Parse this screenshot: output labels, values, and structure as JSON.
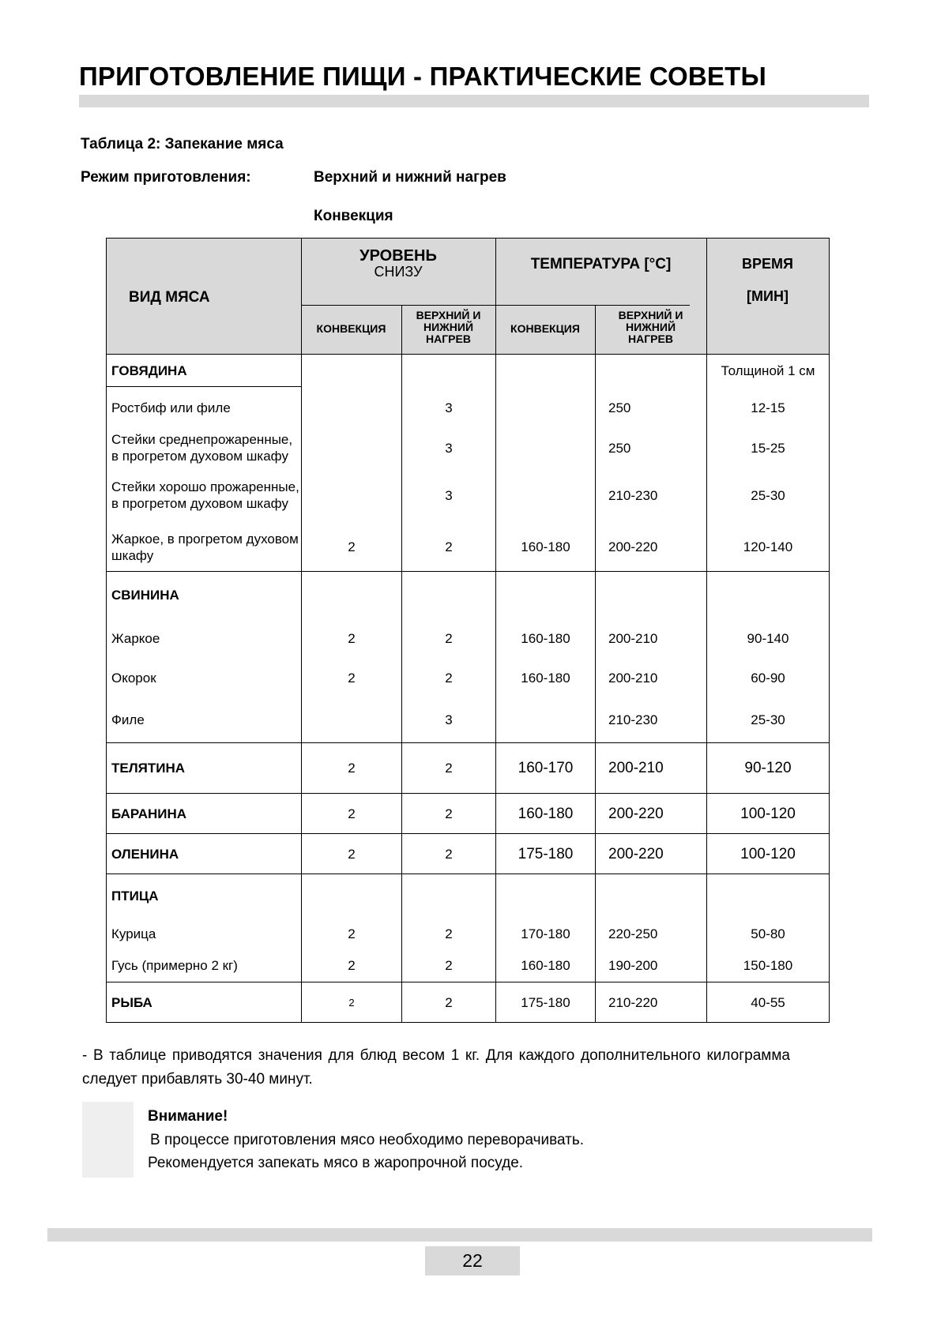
{
  "page_title": "ПРИГОТОВЛЕНИЕ ПИЩИ - ПРАКТИЧЕСКИЕ СОВЕТЫ",
  "table_caption": "Таблица 2: Запекание мяса",
  "mode_label": "Режим приготовления:",
  "modes": [
    "Верхний и нижний нагрев",
    "Конвекция"
  ],
  "table": {
    "header": {
      "meat_type": "ВИД МЯСА",
      "level": "УРОВЕНЬ",
      "level_sub": "СНИЗУ",
      "temperature": "ТЕМПЕРАТУРА [°C]",
      "time_1": "ВРЕМЯ",
      "time_2": "[МИН]",
      "convection": "КОНВЕКЦИЯ",
      "top_bottom": "ВЕРХНИЙ И НИЖНИЙ НАГРЕВ"
    },
    "groups": [
      {
        "title": "ГОВЯДИНА",
        "title_values": [
          "",
          "",
          "",
          "",
          "Толщиной 1 см"
        ],
        "rows": [
          {
            "name": "Ростбиф или филе",
            "values": [
              "",
              "3",
              "",
              "250",
              "12-15"
            ]
          },
          {
            "name": "Стейки среднепрожаренные, в прогретом духовом шкафу",
            "values": [
              "",
              "3",
              "",
              "250",
              "15-25"
            ]
          },
          {
            "name": "Стейки хорошо прожаренные, в прогретом духовом шкафу",
            "values": [
              "",
              "3",
              "",
              "210-230",
              "25-30"
            ]
          },
          {
            "name": "Жаркое, в прогретом духовом шкафу",
            "values": [
              "2",
              "2",
              "160-180",
              "200-220",
              "120-140"
            ]
          }
        ]
      },
      {
        "title": "СВИНИНА",
        "title_values": [
          "",
          "",
          "",
          "",
          ""
        ],
        "rows": [
          {
            "name": "Жаркое",
            "values": [
              "2",
              "2",
              "160-180",
              "200-210",
              "90-140"
            ]
          },
          {
            "name": "Окорок",
            "values": [
              "2",
              "2",
              "160-180",
              "200-210",
              "60-90"
            ]
          },
          {
            "name": "Филе",
            "values": [
              "",
              "3",
              "",
              "210-230",
              "25-30"
            ]
          }
        ]
      },
      {
        "title": "ТЕЛЯТИНА",
        "title_values": [
          "2",
          "2",
          "160-170",
          "200-210",
          "90-120"
        ],
        "rows": []
      },
      {
        "title": "БАРАНИНА",
        "title_values": [
          "2",
          "2",
          "160-180",
          "200-220",
          "100-120"
        ],
        "rows": []
      },
      {
        "title": "ОЛЕНИНА",
        "title_values": [
          "2",
          "2",
          "175-180",
          "200-220",
          "100-120"
        ],
        "rows": []
      },
      {
        "title": "ПТИЦА",
        "title_values": [
          "",
          "",
          "",
          "",
          ""
        ],
        "rows": [
          {
            "name": "Курица",
            "values": [
              "2",
              "2",
              "170-180",
              "220-250",
              "50-80"
            ]
          },
          {
            "name": "Гусь (примерно 2 кг)",
            "values": [
              "2",
              "2",
              "160-180",
              "190-200",
              "150-180"
            ]
          }
        ]
      },
      {
        "title": "РЫБА",
        "title_values": [
          "2",
          "2",
          "175-180",
          "210-220",
          "40-55"
        ],
        "rows": []
      }
    ]
  },
  "note": "- В таблице приводятся значения для блюд весом 1 кг. Для каждого дополнительного килограмма следует прибавлять 30-40 минут.",
  "attention": {
    "title": "Внимание!",
    "lines": [
      "В процессе приготовления мясо необходимо переворачивать.",
      "Рекомендуется запекать мясо в жаропрочной посуде."
    ]
  },
  "page_number": "22"
}
